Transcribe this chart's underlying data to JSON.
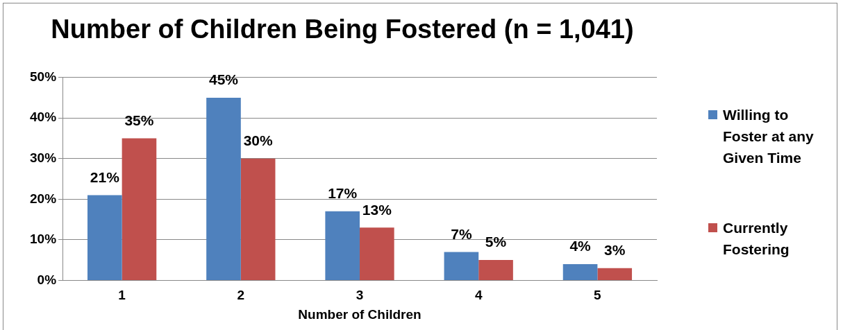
{
  "chart_data": {
    "type": "bar",
    "title": "Number of Children Being Fostered (n = 1,041)",
    "xlabel": "Number of Children",
    "categories": [
      "1",
      "2",
      "3",
      "4",
      "5"
    ],
    "series": [
      {
        "name": "Willing to Foster at any Given Time",
        "color": "#4f81bd",
        "values": [
          21,
          45,
          17,
          7,
          4
        ],
        "value_labels": [
          "21%",
          "45%",
          "17%",
          "7%",
          "4%"
        ]
      },
      {
        "name": "Currently Fostering",
        "color": "#c0504d",
        "values": [
          35,
          30,
          13,
          5,
          3
        ],
        "value_labels": [
          "35%",
          "30%",
          "13%",
          "5%",
          "3%"
        ]
      }
    ],
    "ylim": [
      0,
      50
    ],
    "yticks": [
      {
        "value": 0,
        "label": "0%"
      },
      {
        "value": 10,
        "label": "10%"
      },
      {
        "value": 20,
        "label": "20%"
      },
      {
        "value": 30,
        "label": "30%"
      },
      {
        "value": 40,
        "label": "40%"
      },
      {
        "value": 50,
        "label": "50%"
      }
    ],
    "grid": "y",
    "legend": "right"
  }
}
